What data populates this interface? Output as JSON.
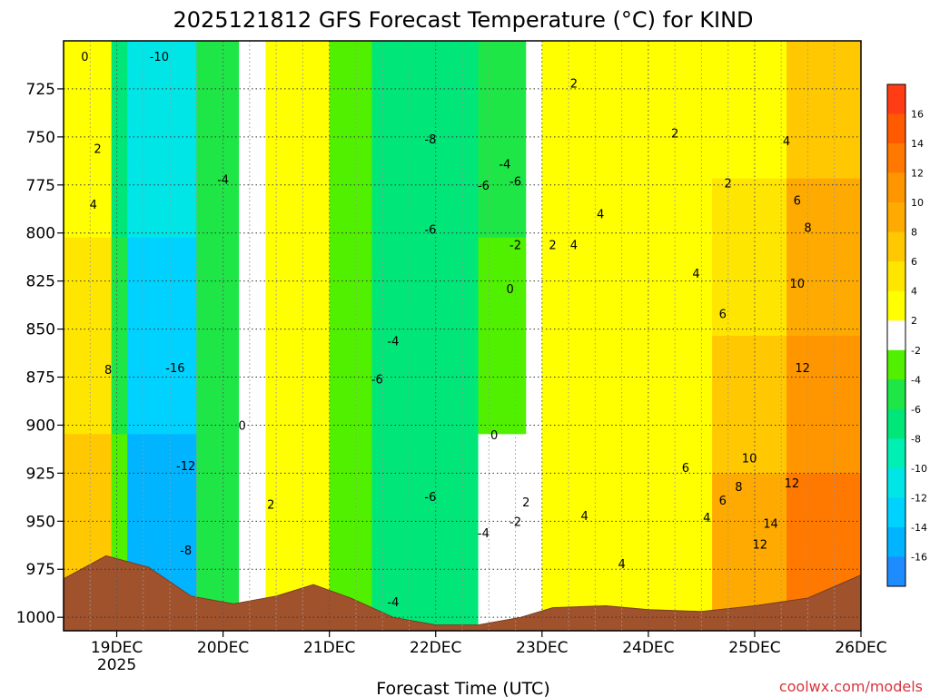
{
  "chart_data": {
    "type": "heatmap",
    "title": "2025121812 GFS Forecast Temperature (°C) for KIND",
    "xlabel": "Forecast Time (UTC)",
    "ylabel": "",
    "credit": "coolwx.com/models",
    "x_ticks": [
      "19DEC",
      "20DEC",
      "21DEC",
      "22DEC",
      "23DEC",
      "24DEC",
      "25DEC",
      "26DEC"
    ],
    "x_tick_year": "2025",
    "x_domain_days": [
      18.5,
      26.0
    ],
    "y_ticks": [
      725,
      750,
      775,
      800,
      825,
      850,
      875,
      900,
      925,
      950,
      975,
      1000
    ],
    "y_domain_hpa": [
      700,
      1007
    ],
    "colorbar": {
      "levels": [
        -18,
        -16,
        -14,
        -12,
        -10,
        -8,
        -6,
        -4,
        -2,
        2,
        4,
        6,
        8,
        10,
        12,
        14,
        16,
        18
      ],
      "tick_labels": [
        "-16",
        "-14",
        "-12",
        "-10",
        "-8",
        "-6",
        "-4",
        "-2",
        "2",
        "4",
        "6",
        "8",
        "10",
        "12",
        "14",
        "16"
      ],
      "colors": [
        "#1e8cff",
        "#00b4ff",
        "#00d2ff",
        "#00e6e6",
        "#00f0b4",
        "#00e678",
        "#1ee646",
        "#50f000",
        "#ffffff",
        "#ffff00",
        "#ffe600",
        "#ffc800",
        "#ffaa00",
        "#ff9600",
        "#ff7800",
        "#ff5a00",
        "#ff3c14"
      ]
    },
    "temperature_bands": [
      {
        "day_start": 18.5,
        "day_end": 18.95,
        "t_upper": 2,
        "t_lower": 8
      },
      {
        "day_start": 18.95,
        "day_end": 19.1,
        "t_upper": -8,
        "t_lower": -2
      },
      {
        "day_start": 19.1,
        "day_end": 19.75,
        "t_upper": -10,
        "t_lower": -16
      },
      {
        "day_start": 19.75,
        "day_end": 20.15,
        "t_upper": -6,
        "t_lower": -6
      },
      {
        "day_start": 20.15,
        "day_end": 20.4,
        "t_upper": 0,
        "t_lower": 0
      },
      {
        "day_start": 20.4,
        "day_end": 21.0,
        "t_upper": 2,
        "t_lower": 2
      },
      {
        "day_start": 21.0,
        "day_end": 21.4,
        "t_upper": -4,
        "t_lower": -2
      },
      {
        "day_start": 21.4,
        "day_end": 22.4,
        "t_upper": -8,
        "t_lower": -6
      },
      {
        "day_start": 22.4,
        "day_end": 22.85,
        "t_upper": -6,
        "t_lower": 0
      },
      {
        "day_start": 22.85,
        "day_end": 23.0,
        "t_upper": 0,
        "t_lower": 0
      },
      {
        "day_start": 23.0,
        "day_end": 24.6,
        "t_upper": 2,
        "t_lower": 4
      },
      {
        "day_start": 24.6,
        "day_end": 25.3,
        "t_upper": 2,
        "t_lower": 10
      },
      {
        "day_start": 25.3,
        "day_end": 26.0,
        "t_upper": 6,
        "t_lower": 14
      }
    ],
    "surface_pressure": [
      {
        "day": 18.5,
        "hpa": 980
      },
      {
        "day": 18.9,
        "hpa": 968
      },
      {
        "day": 19.3,
        "hpa": 974
      },
      {
        "day": 19.7,
        "hpa": 989
      },
      {
        "day": 20.1,
        "hpa": 993
      },
      {
        "day": 20.5,
        "hpa": 989
      },
      {
        "day": 20.85,
        "hpa": 983
      },
      {
        "day": 21.2,
        "hpa": 990
      },
      {
        "day": 21.6,
        "hpa": 1000
      },
      {
        "day": 22.0,
        "hpa": 1004
      },
      {
        "day": 22.4,
        "hpa": 1004
      },
      {
        "day": 22.8,
        "hpa": 1000
      },
      {
        "day": 23.1,
        "hpa": 995
      },
      {
        "day": 23.6,
        "hpa": 994
      },
      {
        "day": 24.0,
        "hpa": 996
      },
      {
        "day": 24.5,
        "hpa": 997
      },
      {
        "day": 25.0,
        "hpa": 994
      },
      {
        "day": 25.5,
        "hpa": 990
      },
      {
        "day": 26.0,
        "hpa": 978
      }
    ],
    "contour_labels": [
      {
        "text": "0",
        "day": 18.7,
        "hpa": 708
      },
      {
        "text": "-10",
        "day": 19.4,
        "hpa": 708
      },
      {
        "text": "2",
        "day": 18.82,
        "hpa": 756
      },
      {
        "text": "4",
        "day": 18.78,
        "hpa": 785
      },
      {
        "text": "8",
        "day": 18.92,
        "hpa": 871
      },
      {
        "text": "-16",
        "day": 19.55,
        "hpa": 870
      },
      {
        "text": "-12",
        "day": 19.65,
        "hpa": 921
      },
      {
        "text": "-8",
        "day": 19.65,
        "hpa": 965
      },
      {
        "text": "-4",
        "day": 20.0,
        "hpa": 772
      },
      {
        "text": "0",
        "day": 20.18,
        "hpa": 900
      },
      {
        "text": "2",
        "day": 20.45,
        "hpa": 941
      },
      {
        "text": "-8",
        "day": 21.95,
        "hpa": 751
      },
      {
        "text": "-6",
        "day": 21.95,
        "hpa": 798
      },
      {
        "text": "-4",
        "day": 21.6,
        "hpa": 856
      },
      {
        "text": "-6",
        "day": 21.45,
        "hpa": 876
      },
      {
        "text": "-6",
        "day": 21.95,
        "hpa": 937
      },
      {
        "text": "-4",
        "day": 21.6,
        "hpa": 992
      },
      {
        "text": "-4",
        "day": 22.65,
        "hpa": 764
      },
      {
        "text": "-6",
        "day": 22.45,
        "hpa": 775
      },
      {
        "text": "-6",
        "day": 22.75,
        "hpa": 773
      },
      {
        "text": "-2",
        "day": 22.75,
        "hpa": 806
      },
      {
        "text": "0",
        "day": 22.7,
        "hpa": 829
      },
      {
        "text": "2",
        "day": 23.1,
        "hpa": 806
      },
      {
        "text": "4",
        "day": 23.3,
        "hpa": 806
      },
      {
        "text": "0",
        "day": 22.55,
        "hpa": 905
      },
      {
        "text": "2",
        "day": 22.85,
        "hpa": 940
      },
      {
        "text": "-2",
        "day": 22.75,
        "hpa": 950
      },
      {
        "text": "-4",
        "day": 22.45,
        "hpa": 956
      },
      {
        "text": "2",
        "day": 23.3,
        "hpa": 722
      },
      {
        "text": "2",
        "day": 24.25,
        "hpa": 748
      },
      {
        "text": "2",
        "day": 24.75,
        "hpa": 774
      },
      {
        "text": "4",
        "day": 25.3,
        "hpa": 752
      },
      {
        "text": "4",
        "day": 23.55,
        "hpa": 790
      },
      {
        "text": "4",
        "day": 24.45,
        "hpa": 821
      },
      {
        "text": "6",
        "day": 25.4,
        "hpa": 783
      },
      {
        "text": "8",
        "day": 25.5,
        "hpa": 797
      },
      {
        "text": "6",
        "day": 24.7,
        "hpa": 842
      },
      {
        "text": "10",
        "day": 25.4,
        "hpa": 826
      },
      {
        "text": "12",
        "day": 25.45,
        "hpa": 870
      },
      {
        "text": "6",
        "day": 24.35,
        "hpa": 922
      },
      {
        "text": "10",
        "day": 24.95,
        "hpa": 917
      },
      {
        "text": "8",
        "day": 24.85,
        "hpa": 932
      },
      {
        "text": "6",
        "day": 24.7,
        "hpa": 939
      },
      {
        "text": "12",
        "day": 25.35,
        "hpa": 930
      },
      {
        "text": "4",
        "day": 23.4,
        "hpa": 947
      },
      {
        "text": "4",
        "day": 24.55,
        "hpa": 948
      },
      {
        "text": "14",
        "day": 25.15,
        "hpa": 951
      },
      {
        "text": "12",
        "day": 25.05,
        "hpa": 962
      },
      {
        "text": "4",
        "day": 23.75,
        "hpa": 972
      }
    ]
  }
}
